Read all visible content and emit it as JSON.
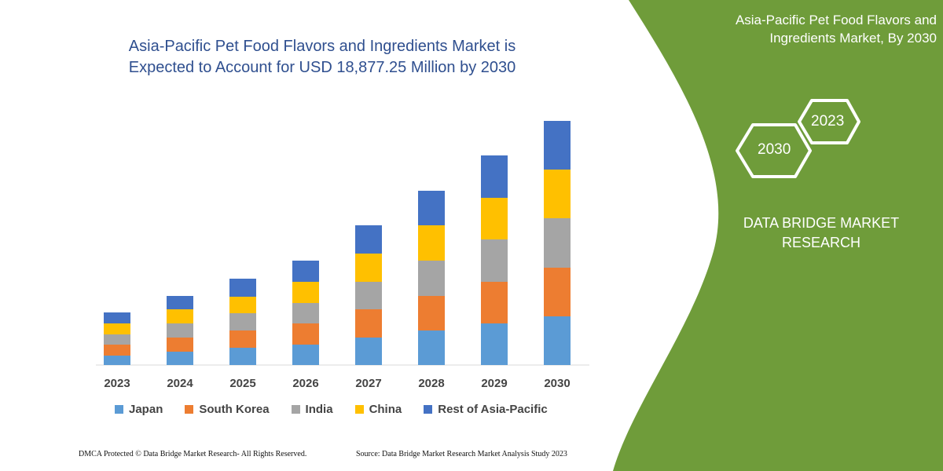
{
  "chart_data": {
    "type": "bar",
    "stacked": true,
    "title": "Asia-Pacific Pet Food Flavors and Ingredients Market is Expected to Account for USD 18,877.25 Million by 2030",
    "categories": [
      "2023",
      "2024",
      "2025",
      "2026",
      "2027",
      "2028",
      "2029",
      "2030"
    ],
    "series": [
      {
        "name": "Japan",
        "color": "#5b9bd5",
        "values": [
          12,
          17,
          22,
          26,
          35,
          44,
          53,
          62
        ]
      },
      {
        "name": "South Korea",
        "color": "#ed7d31",
        "values": [
          14,
          18,
          22,
          27,
          36,
          44,
          53,
          62
        ]
      },
      {
        "name": "India",
        "color": "#a5a5a5",
        "values": [
          13,
          18,
          22,
          26,
          35,
          45,
          54,
          63
        ]
      },
      {
        "name": "China",
        "color": "#ffc000",
        "values": [
          14,
          18,
          21,
          27,
          36,
          45,
          53,
          62
        ]
      },
      {
        "name": "Rest of Asia-Pacific",
        "color": "#4472c4",
        "values": [
          14,
          17,
          23,
          27,
          36,
          44,
          54,
          62
        ]
      }
    ],
    "ylim": [
      0,
      320
    ],
    "y_axis_visible": false,
    "grid": false,
    "legend_position": "bottom"
  },
  "side_panel": {
    "title": "Asia-Pacific Pet Food Flavors and Ingredients Market, By 2030",
    "hex_years": [
      "2023",
      "2030"
    ],
    "brand": "DATA BRIDGE MARKET RESEARCH",
    "color": "#6f9c3a"
  },
  "footer": {
    "left": "DMCA Protected © Data Bridge Market Research-  All Rights Reserved.",
    "right": "Source: Data Bridge Market Research  Market Analysis Study 2023"
  }
}
